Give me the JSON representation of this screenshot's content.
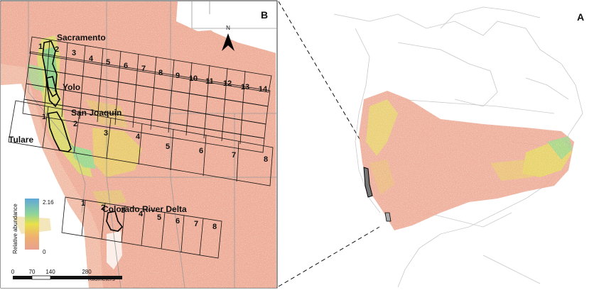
{
  "panel_b": {
    "letter": "B",
    "north": "N",
    "regions": {
      "sacramento": "Sacramento",
      "yolo": "Yolo",
      "san_joaquin": "San Joaquin",
      "tulare": "Tulare",
      "colorado": "Colorado River Delta"
    },
    "transects": {
      "sacramento": [
        "1",
        "2",
        "3",
        "4",
        "5",
        "6",
        "7",
        "8",
        "9",
        "10",
        "11",
        "12",
        "13",
        "14"
      ],
      "san_joaquin": [
        "1",
        "2",
        "3",
        "4",
        "5",
        "6",
        "7",
        "8"
      ],
      "colorado": [
        "1",
        "2",
        "3",
        "4",
        "5",
        "6",
        "7",
        "8"
      ]
    },
    "legend": {
      "title": "Relative abundance",
      "max": "2.16",
      "min": "0",
      "colors": [
        "#5fa8d8",
        "#7fd0a0",
        "#e8e04a",
        "#f0b070",
        "#e8a090"
      ]
    },
    "scalebar": {
      "ticks": [
        "0",
        "70",
        "140",
        "280"
      ],
      "unit": "Kilometers"
    }
  },
  "panel_a": {
    "letter": "A"
  }
}
